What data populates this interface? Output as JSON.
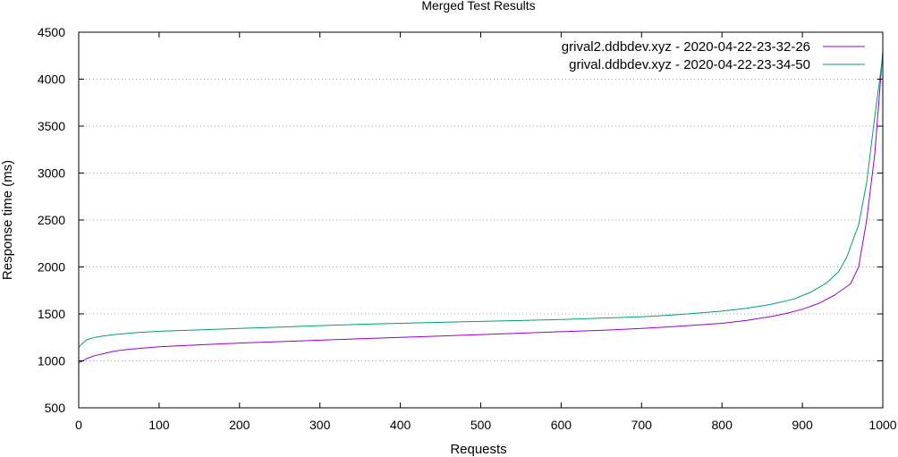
{
  "chart_data": {
    "type": "line",
    "title": "Merged Test Results",
    "xlabel": "Requests",
    "ylabel": "Response time (ms)",
    "xlim": [
      0,
      1000
    ],
    "ylim": [
      500,
      4500
    ],
    "xticks": [
      0,
      100,
      200,
      300,
      400,
      500,
      600,
      700,
      800,
      900,
      1000
    ],
    "yticks": [
      500,
      1000,
      1500,
      2000,
      2500,
      3000,
      3500,
      4000,
      4500
    ],
    "grid": "horizontal-dotted",
    "legend_position": "top-right",
    "series": [
      {
        "name": "grival2.ddbdev.xyz - 2020-04-22-23-32-26",
        "color": "#9400d3",
        "x": [
          0,
          5,
          10,
          20,
          30,
          40,
          50,
          60,
          80,
          100,
          150,
          200,
          250,
          300,
          350,
          400,
          450,
          500,
          550,
          600,
          650,
          700,
          750,
          800,
          830,
          860,
          880,
          900,
          920,
          940,
          960,
          970,
          980,
          990,
          1000
        ],
        "y": [
          980,
          1000,
          1025,
          1055,
          1075,
          1095,
          1110,
          1120,
          1135,
          1150,
          1170,
          1190,
          1205,
          1220,
          1235,
          1250,
          1265,
          1280,
          1295,
          1310,
          1325,
          1345,
          1370,
          1400,
          1430,
          1470,
          1505,
          1550,
          1610,
          1700,
          1820,
          2000,
          2500,
          3200,
          4300
        ]
      },
      {
        "name": "grival.ddbdev.xyz - 2020-04-22-23-34-50",
        "color": "#009e73",
        "x": [
          0,
          5,
          10,
          20,
          30,
          40,
          50,
          70,
          100,
          150,
          200,
          250,
          300,
          350,
          400,
          450,
          500,
          550,
          600,
          650,
          700,
          720,
          750,
          800,
          830,
          860,
          890,
          910,
          930,
          945,
          955,
          970,
          980,
          990,
          1000
        ],
        "y": [
          1145,
          1190,
          1225,
          1250,
          1265,
          1275,
          1285,
          1300,
          1315,
          1330,
          1345,
          1360,
          1375,
          1390,
          1400,
          1410,
          1420,
          1430,
          1440,
          1455,
          1470,
          1478,
          1495,
          1530,
          1560,
          1600,
          1660,
          1730,
          1830,
          1950,
          2100,
          2450,
          2900,
          3600,
          4250
        ]
      }
    ]
  }
}
